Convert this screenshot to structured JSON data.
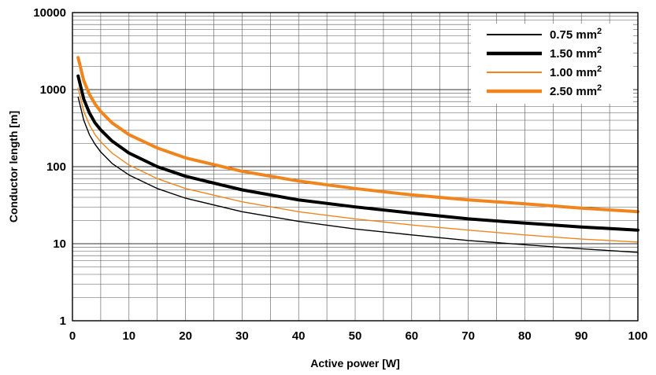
{
  "chart_data": {
    "type": "line",
    "title": "",
    "xlabel": "Active power [W]",
    "ylabel": "Conductor length [m]",
    "xlim": [
      0,
      100
    ],
    "ylim": [
      1,
      10000
    ],
    "yscale": "log",
    "grid": true,
    "legend_position": "top-right",
    "x_ticks": [
      "0",
      "10",
      "20",
      "30",
      "40",
      "50",
      "60",
      "70",
      "80",
      "90",
      "100"
    ],
    "y_ticks": [
      "1",
      "10",
      "100",
      "1000",
      "10000"
    ],
    "series": [
      {
        "name": "0.75 mm²",
        "label_main": "0.75 mm",
        "label_sup": "2",
        "color": "#000000",
        "weight": "thin",
        "x": [
          1,
          2,
          3,
          4,
          5,
          7,
          10,
          15,
          20,
          30,
          40,
          50,
          60,
          70,
          80,
          90,
          100
        ],
        "y": [
          800,
          400,
          260,
          195,
          155,
          110,
          78,
          52,
          39,
          26,
          19.5,
          15.5,
          13,
          11,
          9.7,
          8.6,
          7.7
        ]
      },
      {
        "name": "1.50 mm²",
        "label_main": "1.50 mm",
        "label_sup": "2",
        "color": "#000000",
        "weight": "thick",
        "x": [
          1,
          2,
          3,
          4,
          5,
          7,
          10,
          15,
          20,
          30,
          40,
          50,
          60,
          70,
          80,
          90,
          100
        ],
        "y": [
          1500,
          750,
          500,
          370,
          300,
          215,
          150,
          100,
          75,
          50,
          37,
          30,
          25,
          21,
          18.5,
          16.5,
          15
        ]
      },
      {
        "name": "1.00 mm²",
        "label_main": "1.00 mm",
        "label_sup": "2",
        "color": "#f0851d",
        "weight": "thin",
        "x": [
          1,
          2,
          3,
          4,
          5,
          7,
          10,
          15,
          20,
          30,
          40,
          50,
          60,
          70,
          80,
          90,
          100
        ],
        "y": [
          1050,
          520,
          350,
          260,
          210,
          150,
          105,
          70,
          52,
          35,
          26,
          21,
          17.5,
          15,
          13,
          11.5,
          10.5
        ]
      },
      {
        "name": "2.50 mm²",
        "label_main": "2.50 mm",
        "label_sup": "2",
        "color": "#f0851d",
        "weight": "thick",
        "x": [
          1,
          2,
          3,
          4,
          5,
          7,
          10,
          15,
          20,
          30,
          40,
          50,
          60,
          70,
          80,
          90,
          100
        ],
        "y": [
          2600,
          1300,
          870,
          650,
          520,
          370,
          260,
          175,
          130,
          87,
          65,
          52,
          43,
          37,
          33,
          29,
          26
        ]
      }
    ]
  }
}
